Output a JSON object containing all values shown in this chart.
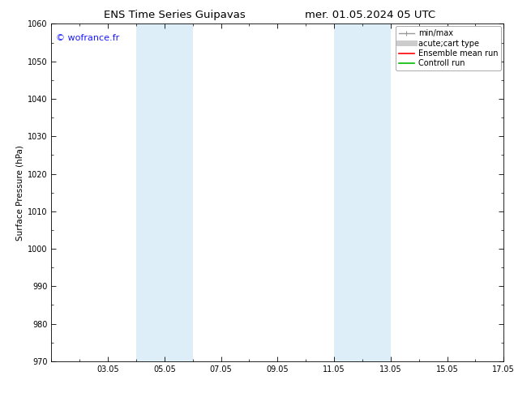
{
  "title_left": "ENS Time Series Guipavas",
  "title_right": "mer. 01.05.2024 05 UTC",
  "ylabel": "Surface Pressure (hPa)",
  "ylim": [
    970,
    1060
  ],
  "yticks": [
    970,
    980,
    990,
    1000,
    1010,
    1020,
    1030,
    1040,
    1050,
    1060
  ],
  "xlim_days": [
    1.0,
    17.0
  ],
  "xtick_labels": [
    "03.05",
    "05.05",
    "07.05",
    "09.05",
    "11.05",
    "13.05",
    "15.05",
    "17.05"
  ],
  "xtick_positions": [
    3.0,
    5.0,
    7.0,
    9.0,
    11.0,
    13.0,
    15.0,
    17.0
  ],
  "shaded_bands": [
    {
      "xmin": 4.0,
      "xmax": 5.0,
      "color": "#ddeef8"
    },
    {
      "xmin": 5.0,
      "xmax": 6.0,
      "color": "#ddeef8"
    },
    {
      "xmin": 11.0,
      "xmax": 12.0,
      "color": "#ddeef8"
    },
    {
      "xmin": 12.0,
      "xmax": 13.0,
      "color": "#ddeef8"
    }
  ],
  "watermark_text": "© wofrance.fr",
  "watermark_color": "#1a1aff",
  "legend_entries": [
    {
      "label": "min/max",
      "color": "#999999",
      "lw": 1.0
    },
    {
      "label": "acute;cart type",
      "color": "#cccccc",
      "lw": 5
    },
    {
      "label": "Ensemble mean run",
      "color": "#ff0000",
      "lw": 1.2
    },
    {
      "label": "Controll run",
      "color": "#00bb00",
      "lw": 1.2
    }
  ],
  "bg_color": "#ffffff",
  "plot_bg_color": "#ffffff",
  "title_fontsize": 9.5,
  "axis_fontsize": 7.5,
  "tick_fontsize": 7,
  "legend_fontsize": 7,
  "watermark_fontsize": 8
}
